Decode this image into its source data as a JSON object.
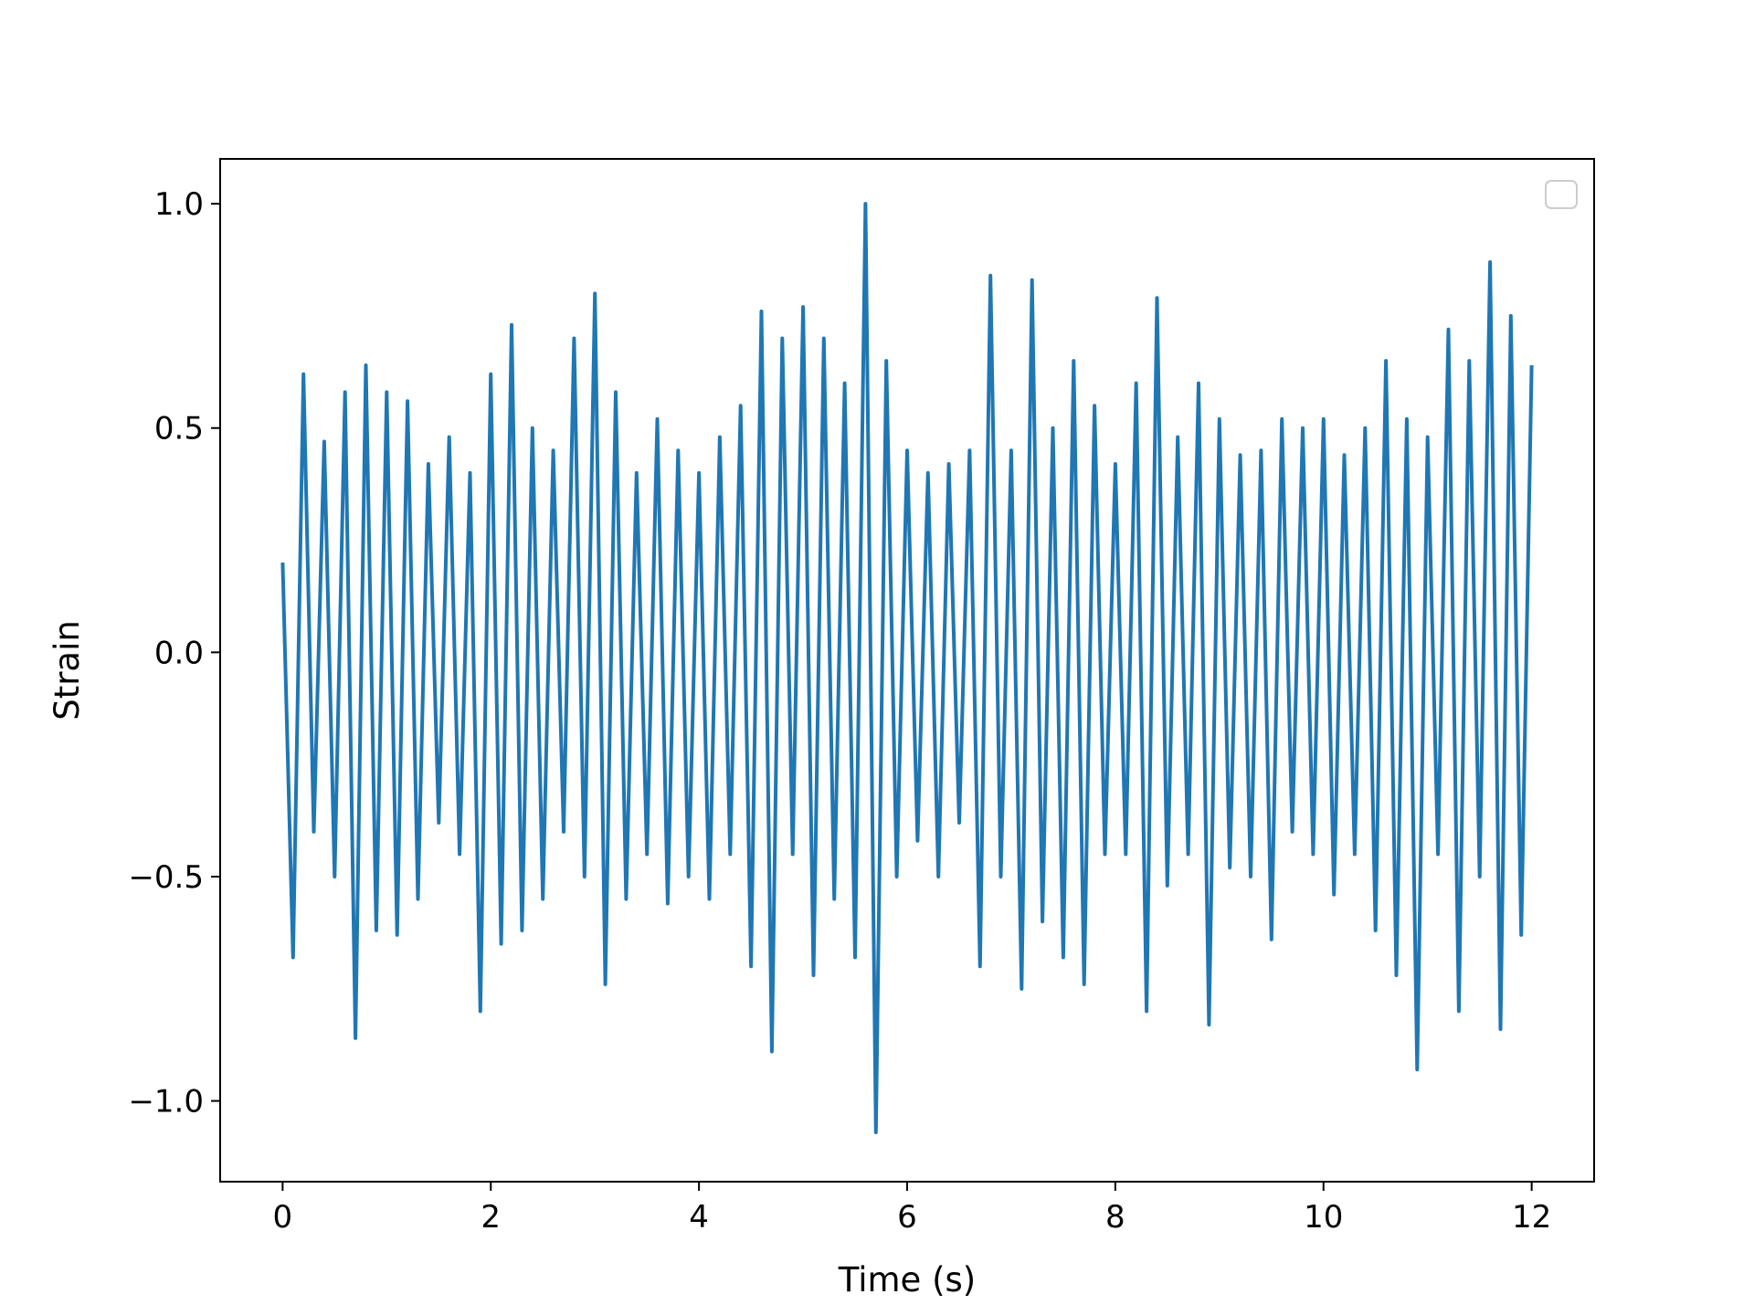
{
  "chart_data": {
    "type": "line",
    "title": "",
    "xlabel": "Time (s)",
    "ylabel": "Strain",
    "xlim": [
      -0.6,
      12.6
    ],
    "ylim": [
      -1.18,
      1.1
    ],
    "xticks": [
      0,
      2,
      4,
      6,
      8,
      10,
      12
    ],
    "xtick_labels": [
      "0",
      "2",
      "4",
      "6",
      "8",
      "10",
      "12"
    ],
    "yticks": [
      1.0,
      0.5,
      0.0,
      -0.5,
      -1.0
    ],
    "ytick_labels": [
      "1.0",
      "0.5",
      "0.0",
      "−0.5",
      "−1.0"
    ],
    "grid": false,
    "legend": "top-right",
    "series": [
      {
        "color": "#1f77b4",
        "x": [
          0.0,
          0.1,
          0.2,
          0.3,
          0.4,
          0.5,
          0.6,
          0.7,
          0.8,
          0.9,
          1.0,
          1.1,
          1.2,
          1.3,
          1.4,
          1.5,
          1.6,
          1.7,
          1.8,
          1.9,
          2.0,
          2.1,
          2.2,
          2.3,
          2.4,
          2.5,
          2.6,
          2.7,
          2.8,
          2.9,
          3.0,
          3.1,
          3.2,
          3.3,
          3.4,
          3.5,
          3.6,
          3.7,
          3.8,
          3.9,
          4.0,
          4.1,
          4.2,
          4.3,
          4.4,
          4.5,
          4.6,
          4.7,
          4.8,
          4.9,
          5.0,
          5.1,
          5.2,
          5.3,
          5.4,
          5.5,
          5.6,
          5.7,
          5.8,
          5.9,
          6.0,
          6.1,
          6.2,
          6.3,
          6.4,
          6.5,
          6.6,
          6.7,
          6.8,
          6.9,
          7.0,
          7.1,
          7.2,
          7.3,
          7.4,
          7.5,
          7.6,
          7.7,
          7.8,
          7.9,
          8.0,
          8.1,
          8.2,
          8.3,
          8.4,
          8.5,
          8.6,
          8.7,
          8.8,
          8.9,
          9.0,
          9.1,
          9.2,
          9.3,
          9.4,
          9.5,
          9.6,
          9.7,
          9.8,
          9.9,
          10.0,
          10.1,
          10.2,
          10.3,
          10.4,
          10.5,
          10.6,
          10.7,
          10.8,
          10.9,
          11.0,
          11.1,
          11.2,
          11.3,
          11.4,
          11.5,
          11.6,
          11.7,
          11.8,
          11.9,
          12.0
        ],
        "y": [
          0.2,
          -0.68,
          0.62,
          -0.4,
          0.47,
          -0.5,
          0.58,
          -0.86,
          0.64,
          -0.62,
          0.58,
          -0.63,
          0.56,
          -0.55,
          0.42,
          -0.38,
          0.48,
          -0.45,
          0.4,
          -0.8,
          0.62,
          -0.65,
          0.73,
          -0.62,
          0.5,
          -0.55,
          0.45,
          -0.4,
          0.7,
          -0.5,
          0.8,
          -0.74,
          0.58,
          -0.55,
          0.4,
          -0.45,
          0.52,
          -0.56,
          0.45,
          -0.5,
          0.4,
          -0.55,
          0.48,
          -0.45,
          0.55,
          -0.7,
          0.76,
          -0.89,
          0.7,
          -0.45,
          0.77,
          -0.72,
          0.7,
          -0.55,
          0.6,
          -0.68,
          1.0,
          -1.07,
          0.65,
          -0.5,
          0.45,
          -0.42,
          0.4,
          -0.5,
          0.42,
          -0.38,
          0.45,
          -0.7,
          0.84,
          -0.5,
          0.45,
          -0.75,
          0.83,
          -0.6,
          0.5,
          -0.68,
          0.65,
          -0.74,
          0.55,
          -0.45,
          0.42,
          -0.45,
          0.6,
          -0.8,
          0.79,
          -0.52,
          0.48,
          -0.45,
          0.6,
          -0.83,
          0.52,
          -0.48,
          0.44,
          -0.5,
          0.45,
          -0.64,
          0.52,
          -0.4,
          0.5,
          -0.45,
          0.52,
          -0.54,
          0.44,
          -0.45,
          0.5,
          -0.62,
          0.65,
          -0.72,
          0.52,
          -0.93,
          0.48,
          -0.45,
          0.72,
          -0.8,
          0.65,
          -0.5,
          0.87,
          -0.84,
          0.75,
          -0.63,
          0.64
        ]
      }
    ]
  }
}
